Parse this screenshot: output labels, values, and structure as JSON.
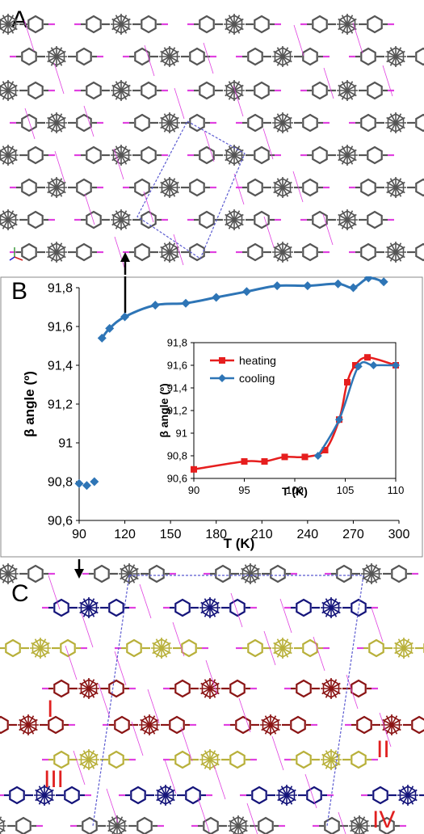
{
  "panels": {
    "a": "A",
    "b": "B",
    "c": "C"
  },
  "layer_labels": [
    "I",
    "II",
    "III",
    "IV"
  ],
  "colors": {
    "main_series": "#2e75b6",
    "heating": "#e61e1e",
    "cooling": "#2e75b6",
    "molecule_grey": "#555555",
    "molecule_blue": "#14147a",
    "molecule_yellow": "#b8b03a",
    "molecule_red": "#8a1414",
    "contact_magenta": "#e040e0",
    "cell_edge": "#5a5ad0"
  },
  "chart_data": [
    {
      "type": "scatter",
      "xlabel": "T (K)",
      "ylabel": "β angle (º)",
      "xlim": [
        90,
        300
      ],
      "ylim": [
        90.6,
        91.8
      ],
      "xticks": [
        "90",
        "120",
        "150",
        "180",
        "210",
        "240",
        "270",
        "300"
      ],
      "yticks": [
        "90,6",
        "90,8",
        "91",
        "91,2",
        "91,4",
        "91,6",
        "91,8"
      ],
      "series": [
        {
          "points": [
            [
              90,
              90.79
            ],
            [
              95,
              90.78
            ],
            [
              100,
              90.8
            ],
            [
              105,
              91.54
            ],
            [
              110,
              91.59
            ],
            [
              120,
              91.65
            ],
            [
              140,
              91.71
            ],
            [
              160,
              91.72
            ],
            [
              180,
              91.75
            ],
            [
              200,
              91.78
            ],
            [
              220,
              91.81
            ],
            [
              240,
              91.81
            ],
            [
              260,
              91.82
            ],
            [
              270,
              91.8
            ],
            [
              280,
              91.85
            ],
            [
              290,
              91.83
            ]
          ],
          "connected_from_index": 3
        }
      ],
      "grid": false
    },
    {
      "type": "line",
      "xlabel": "T (K)",
      "ylabel": "β angle (º)",
      "xlim": [
        90,
        110
      ],
      "ylim": [
        90.6,
        91.8
      ],
      "xticks": [
        "90",
        "95",
        "100",
        "105",
        "110"
      ],
      "yticks": [
        "90,6",
        "90,8",
        "91",
        "91,2",
        "91,4",
        "91,6",
        "91,8"
      ],
      "legend_position": "top-left",
      "series": [
        {
          "name": "heating",
          "points": [
            [
              90,
              90.68
            ],
            [
              95,
              90.75
            ],
            [
              97,
              90.75
            ],
            [
              99,
              90.79
            ],
            [
              101,
              90.79
            ],
            [
              103,
              90.85
            ],
            [
              104.4,
              91.12
            ],
            [
              105.2,
              91.45
            ],
            [
              106,
              91.6
            ],
            [
              107.2,
              91.67
            ],
            [
              110,
              91.6
            ]
          ]
        },
        {
          "name": "cooling",
          "points": [
            [
              102.3,
              90.8
            ],
            [
              104.4,
              91.12
            ],
            [
              106.3,
              91.59
            ],
            [
              107.8,
              91.6
            ],
            [
              110,
              91.6
            ]
          ]
        }
      ],
      "grid": false
    }
  ]
}
